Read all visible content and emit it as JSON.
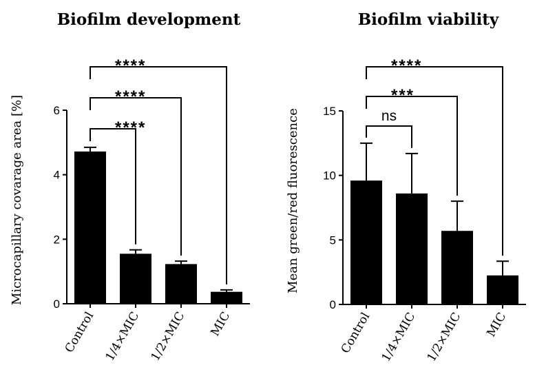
{
  "chart_data": [
    {
      "type": "bar",
      "title": "Biofilm development",
      "ylabel": "Microcapillary covarage area [%]",
      "xlabel": "",
      "categories": [
        "Control",
        "1/4×MIC",
        "1/2×MIC",
        "MIC"
      ],
      "values": [
        4.72,
        1.55,
        1.23,
        0.37
      ],
      "errors": [
        0.13,
        0.12,
        0.09,
        0.06
      ],
      "ylim": [
        0,
        6
      ],
      "yticks": [
        0,
        2,
        4,
        6
      ],
      "comparisons": [
        {
          "from": 0,
          "to": 1,
          "label": "****"
        },
        {
          "from": 0,
          "to": 2,
          "label": "****"
        },
        {
          "from": 0,
          "to": 3,
          "label": "****"
        }
      ]
    },
    {
      "type": "bar",
      "title": "Biofilm viability",
      "ylabel": "Mean green/red fluorescence",
      "xlabel": "",
      "categories": [
        "Control",
        "1/4×MIC",
        "1/2×MIC",
        "MIC"
      ],
      "values": [
        9.6,
        8.6,
        5.7,
        2.25
      ],
      "errors": [
        2.9,
        3.1,
        2.3,
        1.1
      ],
      "ylim": [
        0,
        15
      ],
      "yticks": [
        0,
        5,
        10,
        15
      ],
      "comparisons": [
        {
          "from": 0,
          "to": 1,
          "label": "ns"
        },
        {
          "from": 0,
          "to": 2,
          "label": "***"
        },
        {
          "from": 0,
          "to": 3,
          "label": "****"
        }
      ]
    }
  ]
}
